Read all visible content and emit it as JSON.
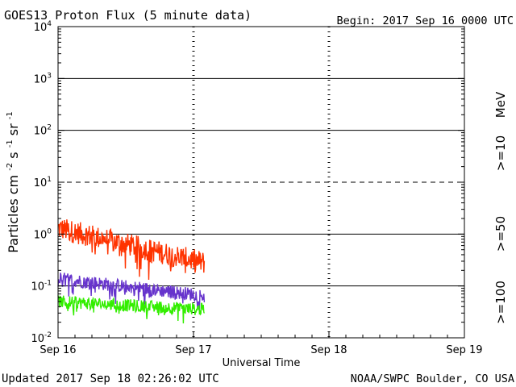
{
  "chart_data": {
    "type": "line",
    "title": "GOES13 Proton Flux (5 minute data)",
    "begin_label": "Begin: 2017 Sep 16 0000 UTC",
    "xlabel": "Universal Time",
    "ylabel_text": "Particles cm",
    "ylabel_units": [
      "-2",
      "s",
      "-1",
      "sr",
      "-1"
    ],
    "units_label": "MeV",
    "x_ticks": [
      "Sep 16",
      "Sep 17",
      "Sep 18",
      "Sep 19"
    ],
    "x_range_days": [
      0,
      3
    ],
    "data_end_day": 1.08,
    "y_scale": "log",
    "ylim": [
      0.01,
      10000
    ],
    "y_ticks": [
      {
        "base": "10",
        "exp": "4",
        "value": 10000
      },
      {
        "base": "10",
        "exp": "3",
        "value": 1000
      },
      {
        "base": "10",
        "exp": "2",
        "value": 100
      },
      {
        "base": "10",
        "exp": "1",
        "value": 10
      },
      {
        "base": "10",
        "exp": "0",
        "value": 1
      },
      {
        "base": "10",
        "exp": "-1",
        "value": 0.1
      },
      {
        "base": "10",
        "exp": "-2",
        "value": 0.01
      }
    ],
    "threshold_lines": [
      {
        "value": 1000,
        "style": "solid"
      },
      {
        "value": 100,
        "style": "solid"
      },
      {
        "value": 10,
        "style": "dashed"
      },
      {
        "value": 1,
        "style": "solid"
      },
      {
        "value": 0.1,
        "style": "solid"
      }
    ],
    "series": [
      {
        "name": ">=10",
        "color": "#ff3300",
        "start_value": 1.3,
        "end_value": 0.28,
        "noise": 0.22
      },
      {
        "name": ">=50",
        "color": "#6633cc",
        "start_value": 0.14,
        "end_value": 0.065,
        "noise": 0.13
      },
      {
        "name": ">=100",
        "color": "#33ee00",
        "start_value": 0.05,
        "end_value": 0.035,
        "noise": 0.12
      }
    ]
  },
  "footer": {
    "updated": "Updated 2017 Sep 18 02:26:02 UTC",
    "source": "NOAA/SWPC Boulder, CO USA"
  }
}
